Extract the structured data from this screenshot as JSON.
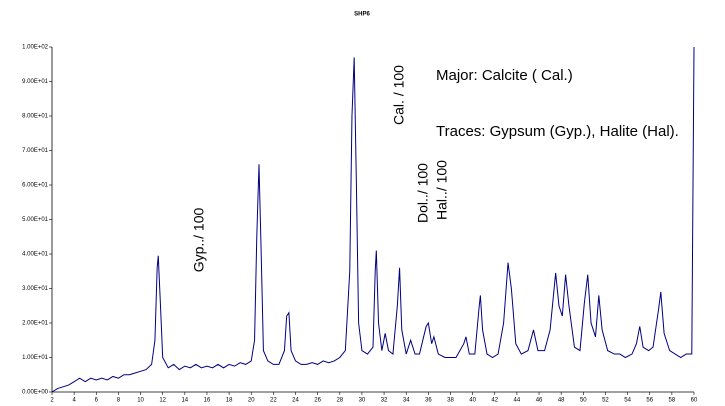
{
  "chart_data": {
    "type": "line",
    "title": "SHP6",
    "color": "#000080",
    "x": [
      2,
      2.5,
      3,
      3.5,
      4,
      4.5,
      5,
      5.5,
      6,
      6.5,
      7,
      7.5,
      8,
      8.5,
      9,
      9.5,
      10,
      10.5,
      11,
      11.3,
      11.5,
      11.6,
      11.8,
      12,
      12.5,
      13,
      13.5,
      14,
      14.5,
      15,
      15.5,
      16,
      16.5,
      17,
      17.5,
      18,
      18.5,
      19,
      19.5,
      20,
      20.3,
      20.5,
      20.7,
      20.9,
      21.1,
      21.5,
      22,
      22.5,
      23,
      23.2,
      23.4,
      23.6,
      24,
      24.5,
      25,
      25.5,
      26,
      26.5,
      27,
      27.5,
      28,
      28.5,
      28.9,
      29.1,
      29.3,
      29.5,
      29.7,
      30,
      30.5,
      31,
      31.2,
      31.3,
      31.5,
      31.8,
      32.1,
      32.4,
      32.8,
      33.2,
      33.4,
      33.6,
      34,
      34.4,
      34.8,
      35.2,
      35.8,
      36,
      36.3,
      36.5,
      36.9,
      37.5,
      38,
      38.5,
      39.2,
      39.4,
      39.7,
      40.2,
      40.6,
      40.7,
      40.9,
      41.3,
      41.8,
      42.3,
      42.8,
      43.2,
      43.5,
      43.9,
      44.4,
      45,
      45.5,
      45.9,
      46.5,
      47,
      47.5,
      47.8,
      48.1,
      48.4,
      48.7,
      49.2,
      49.7,
      50.1,
      50.4,
      50.7,
      51.1,
      51.4,
      51.7,
      52.2,
      52.8,
      53.3,
      53.8,
      54.4,
      54.8,
      55.1,
      55.4,
      55.9,
      56.3,
      56.8,
      57,
      57.3,
      57.8,
      58.3,
      58.8,
      59.3,
      59.8,
      60
    ],
    "values": [
      0,
      1,
      1.5,
      2,
      3,
      4,
      3,
      4,
      3.5,
      4,
      3.5,
      4.5,
      4,
      5,
      5,
      5.5,
      6,
      6.5,
      8,
      15,
      36,
      39.5,
      25,
      10,
      7,
      8,
      6.5,
      7.5,
      7,
      8,
      7,
      7.5,
      7,
      8,
      7,
      8,
      7.5,
      8.5,
      8,
      9,
      15,
      45,
      66,
      40,
      12,
      9,
      8,
      8,
      12,
      22,
      23,
      12,
      9,
      8,
      8,
      8.5,
      8,
      9,
      8.5,
      9,
      10,
      12,
      35,
      80,
      97,
      60,
      20,
      12,
      11,
      13,
      35,
      41,
      20,
      12,
      17,
      12,
      11,
      25,
      36,
      18,
      11,
      15,
      11,
      11,
      19,
      20,
      14,
      16,
      11,
      10,
      10,
      10,
      14,
      16,
      11,
      11,
      25,
      28,
      18,
      11,
      10,
      11,
      20,
      37.5,
      30,
      14,
      11,
      12,
      18,
      12,
      12,
      18,
      34.5,
      25,
      22,
      34,
      25,
      13,
      12,
      26,
      34,
      20,
      16,
      28,
      18,
      12,
      11,
      11,
      10,
      11,
      14,
      19,
      13,
      12,
      13,
      24,
      29,
      17,
      12,
      11,
      10,
      11,
      11,
      100
    ],
    "xlim": [
      2,
      60
    ],
    "xticks": [
      2,
      4,
      6,
      8,
      10,
      12,
      14,
      16,
      18,
      20,
      22,
      24,
      26,
      28,
      30,
      32,
      34,
      36,
      38,
      40,
      42,
      44,
      46,
      48,
      50,
      52,
      54,
      56,
      58,
      60
    ],
    "ylim": [
      0,
      100
    ],
    "yticks": [
      {
        "value": 0,
        "label": "0.00E+00"
      },
      {
        "value": 10,
        "label": "1.00E+01"
      },
      {
        "value": 20,
        "label": "2.00E+01"
      },
      {
        "value": 30,
        "label": "3.00E+01"
      },
      {
        "value": 40,
        "label": "4.00E+01"
      },
      {
        "value": 50,
        "label": "5.00E+01"
      },
      {
        "value": 60,
        "label": "6.00E+01"
      },
      {
        "value": 70,
        "label": "7.00E+01"
      },
      {
        "value": 80,
        "label": "8.00E+01"
      },
      {
        "value": 90,
        "label": "9.00E+01"
      },
      {
        "value": 100,
        "label": "1.00E+02"
      }
    ],
    "annotations": [
      "Major: Calcite ( Cal.)",
      "Traces: Gypsum (Gyp.), Halite (Hal).",
      "Gyp../ 100",
      "Cal. / 100",
      "Dol../ 100",
      "Hal../ 100"
    ]
  }
}
